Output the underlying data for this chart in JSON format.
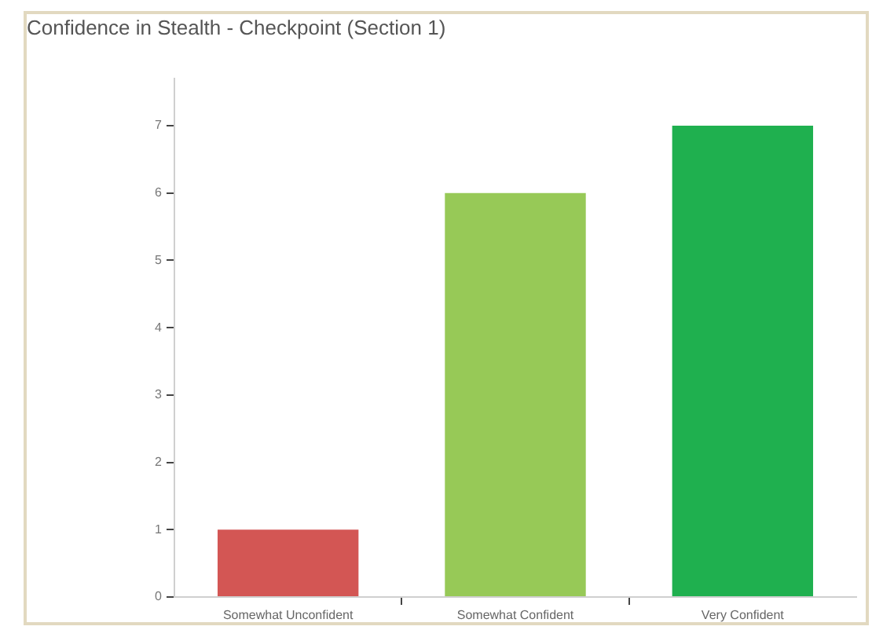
{
  "chart_data": {
    "type": "bar",
    "title": "Confidence in Stealth - Checkpoint (Section 1)",
    "categories": [
      "Somewhat Unconfident",
      "Somewhat Confident",
      "Very Confident"
    ],
    "values": [
      1,
      6,
      7
    ],
    "colors": [
      "#d35654",
      "#97c957",
      "#1fb04f"
    ],
    "ylim": [
      0,
      7.7
    ],
    "yticks": [
      0,
      1,
      2,
      3,
      4,
      5,
      6,
      7
    ],
    "legend": false
  }
}
